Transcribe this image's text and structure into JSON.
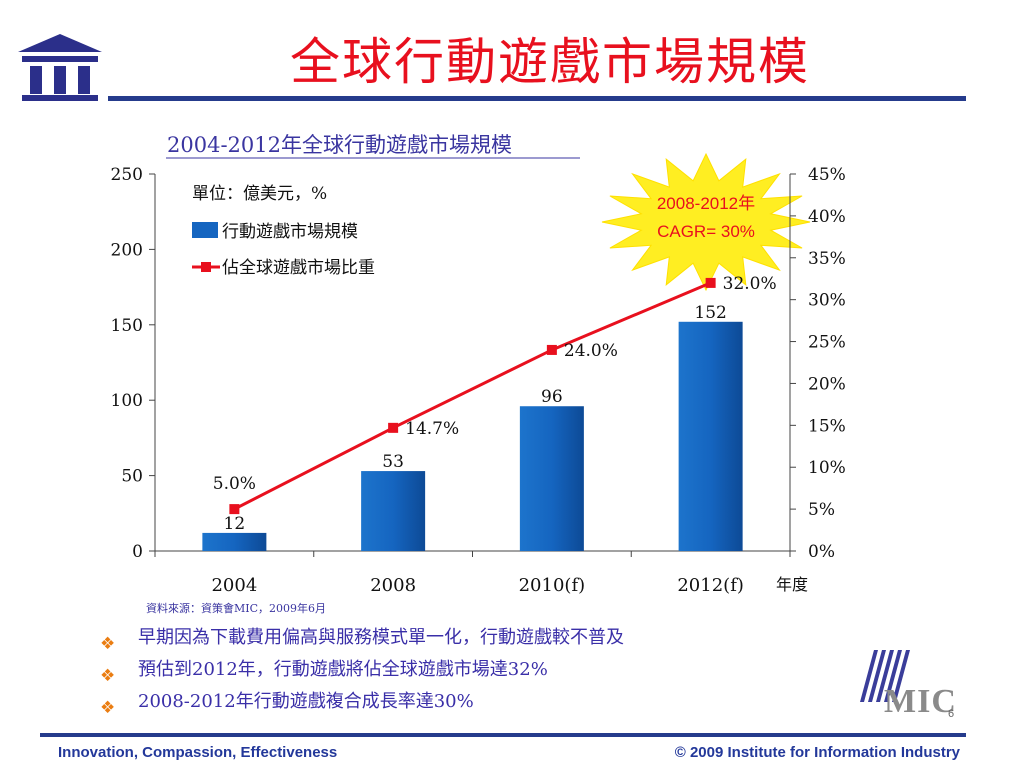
{
  "slide": {
    "title": "全球行動遊戲市場規模",
    "bullets": [
      "早期因為下載費用偏高與服務模式單一化，行動遊戲較不普及",
      "預估到2012年，行動遊戲將佔全球遊戲市場達32%",
      "2008-2012年行動遊戲複合成長率達30%"
    ],
    "slide_number": "6",
    "footer_left": "Innovation, Compassion, Effectiveness",
    "footer_right": "© 2009 Institute for Information Industry",
    "logo_right_text": "MIC"
  },
  "chart_data": {
    "type": "bar",
    "title": "2004-2012年全球行動遊戲市場規模",
    "unit_note": "單位：億美元，%",
    "categories": [
      "2004",
      "2008",
      "2010(f)",
      "2012(f)"
    ],
    "xlabel": "年度",
    "source": "資料來源：資策會MIC，2009年6月",
    "series": [
      {
        "name": "行動遊戲市場規模",
        "type": "bar",
        "axis": "left",
        "values": [
          12,
          53,
          96,
          152
        ],
        "labels": [
          "12",
          "53",
          "96",
          "152"
        ]
      },
      {
        "name": "佔全球遊戲市場比重",
        "type": "line",
        "axis": "right",
        "values": [
          5.0,
          14.7,
          24.0,
          32.0
        ],
        "labels": [
          "5.0%",
          "14.7%",
          "24.0%",
          "32.0%"
        ]
      }
    ],
    "y_left": {
      "ylim": [
        0,
        250
      ],
      "ticks": [
        "0",
        "50",
        "100",
        "150",
        "200",
        "250"
      ]
    },
    "y_right": {
      "ylim": [
        0,
        45
      ],
      "ticks": [
        "0%",
        "5%",
        "10%",
        "15%",
        "20%",
        "25%",
        "30%",
        "35%",
        "40%",
        "45%"
      ]
    },
    "annotation": {
      "line1": "2008-2012年",
      "line2": "CAGR= 30%"
    },
    "legend_position": "top-left",
    "grid": false,
    "colors": {
      "bar": "#1565c0",
      "line": "#e8101e",
      "title": "#3a35a0",
      "callout": "#ffee22"
    }
  }
}
